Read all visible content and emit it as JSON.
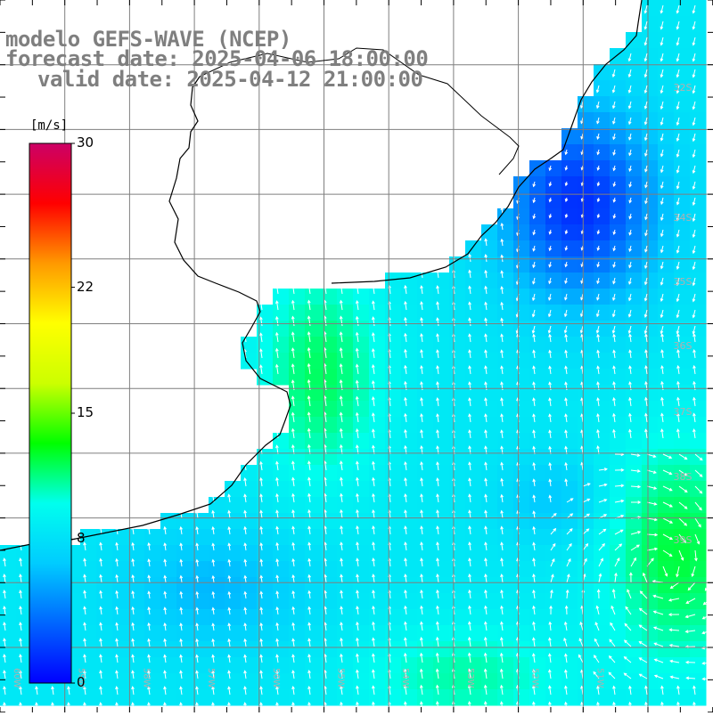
{
  "header": {
    "line1": "modelo GEFS-WAVE (NCEP)",
    "line2": "forecast date: 2025-04-06 18:00:00",
    "line3": "valid date: 2025-04-12 21:00:00"
  },
  "colorbar": {
    "unit": "[m/s]",
    "ticks": [
      {
        "label": "30",
        "value": 30
      },
      {
        "label": "22",
        "value": 22
      },
      {
        "label": "15",
        "value": 15
      },
      {
        "label": "8",
        "value": 8
      },
      {
        "label": "0",
        "value": 0
      }
    ],
    "min": 0,
    "max": 30,
    "colors": [
      "#0000ff",
      "#0066ff",
      "#00ccff",
      "#00ffee",
      "#00ff00",
      "#ccff00",
      "#ffff00",
      "#ff9900",
      "#ff0000",
      "#cc0066"
    ]
  },
  "map": {
    "field": "wind speed and direction",
    "land_color": "#ffffff",
    "coastline_color": "#000000",
    "grid_color": "#7f7f7f",
    "latitude_labels": [
      "32S",
      "34S",
      "35S",
      "36S",
      "37S",
      "38S",
      "39S"
    ],
    "longitude_labels": [
      "60W",
      "59W",
      "58W",
      "57W",
      "56W",
      "55W",
      "54W",
      "53W",
      "52W",
      "51W"
    ],
    "vector_color": "#ffffff"
  }
}
